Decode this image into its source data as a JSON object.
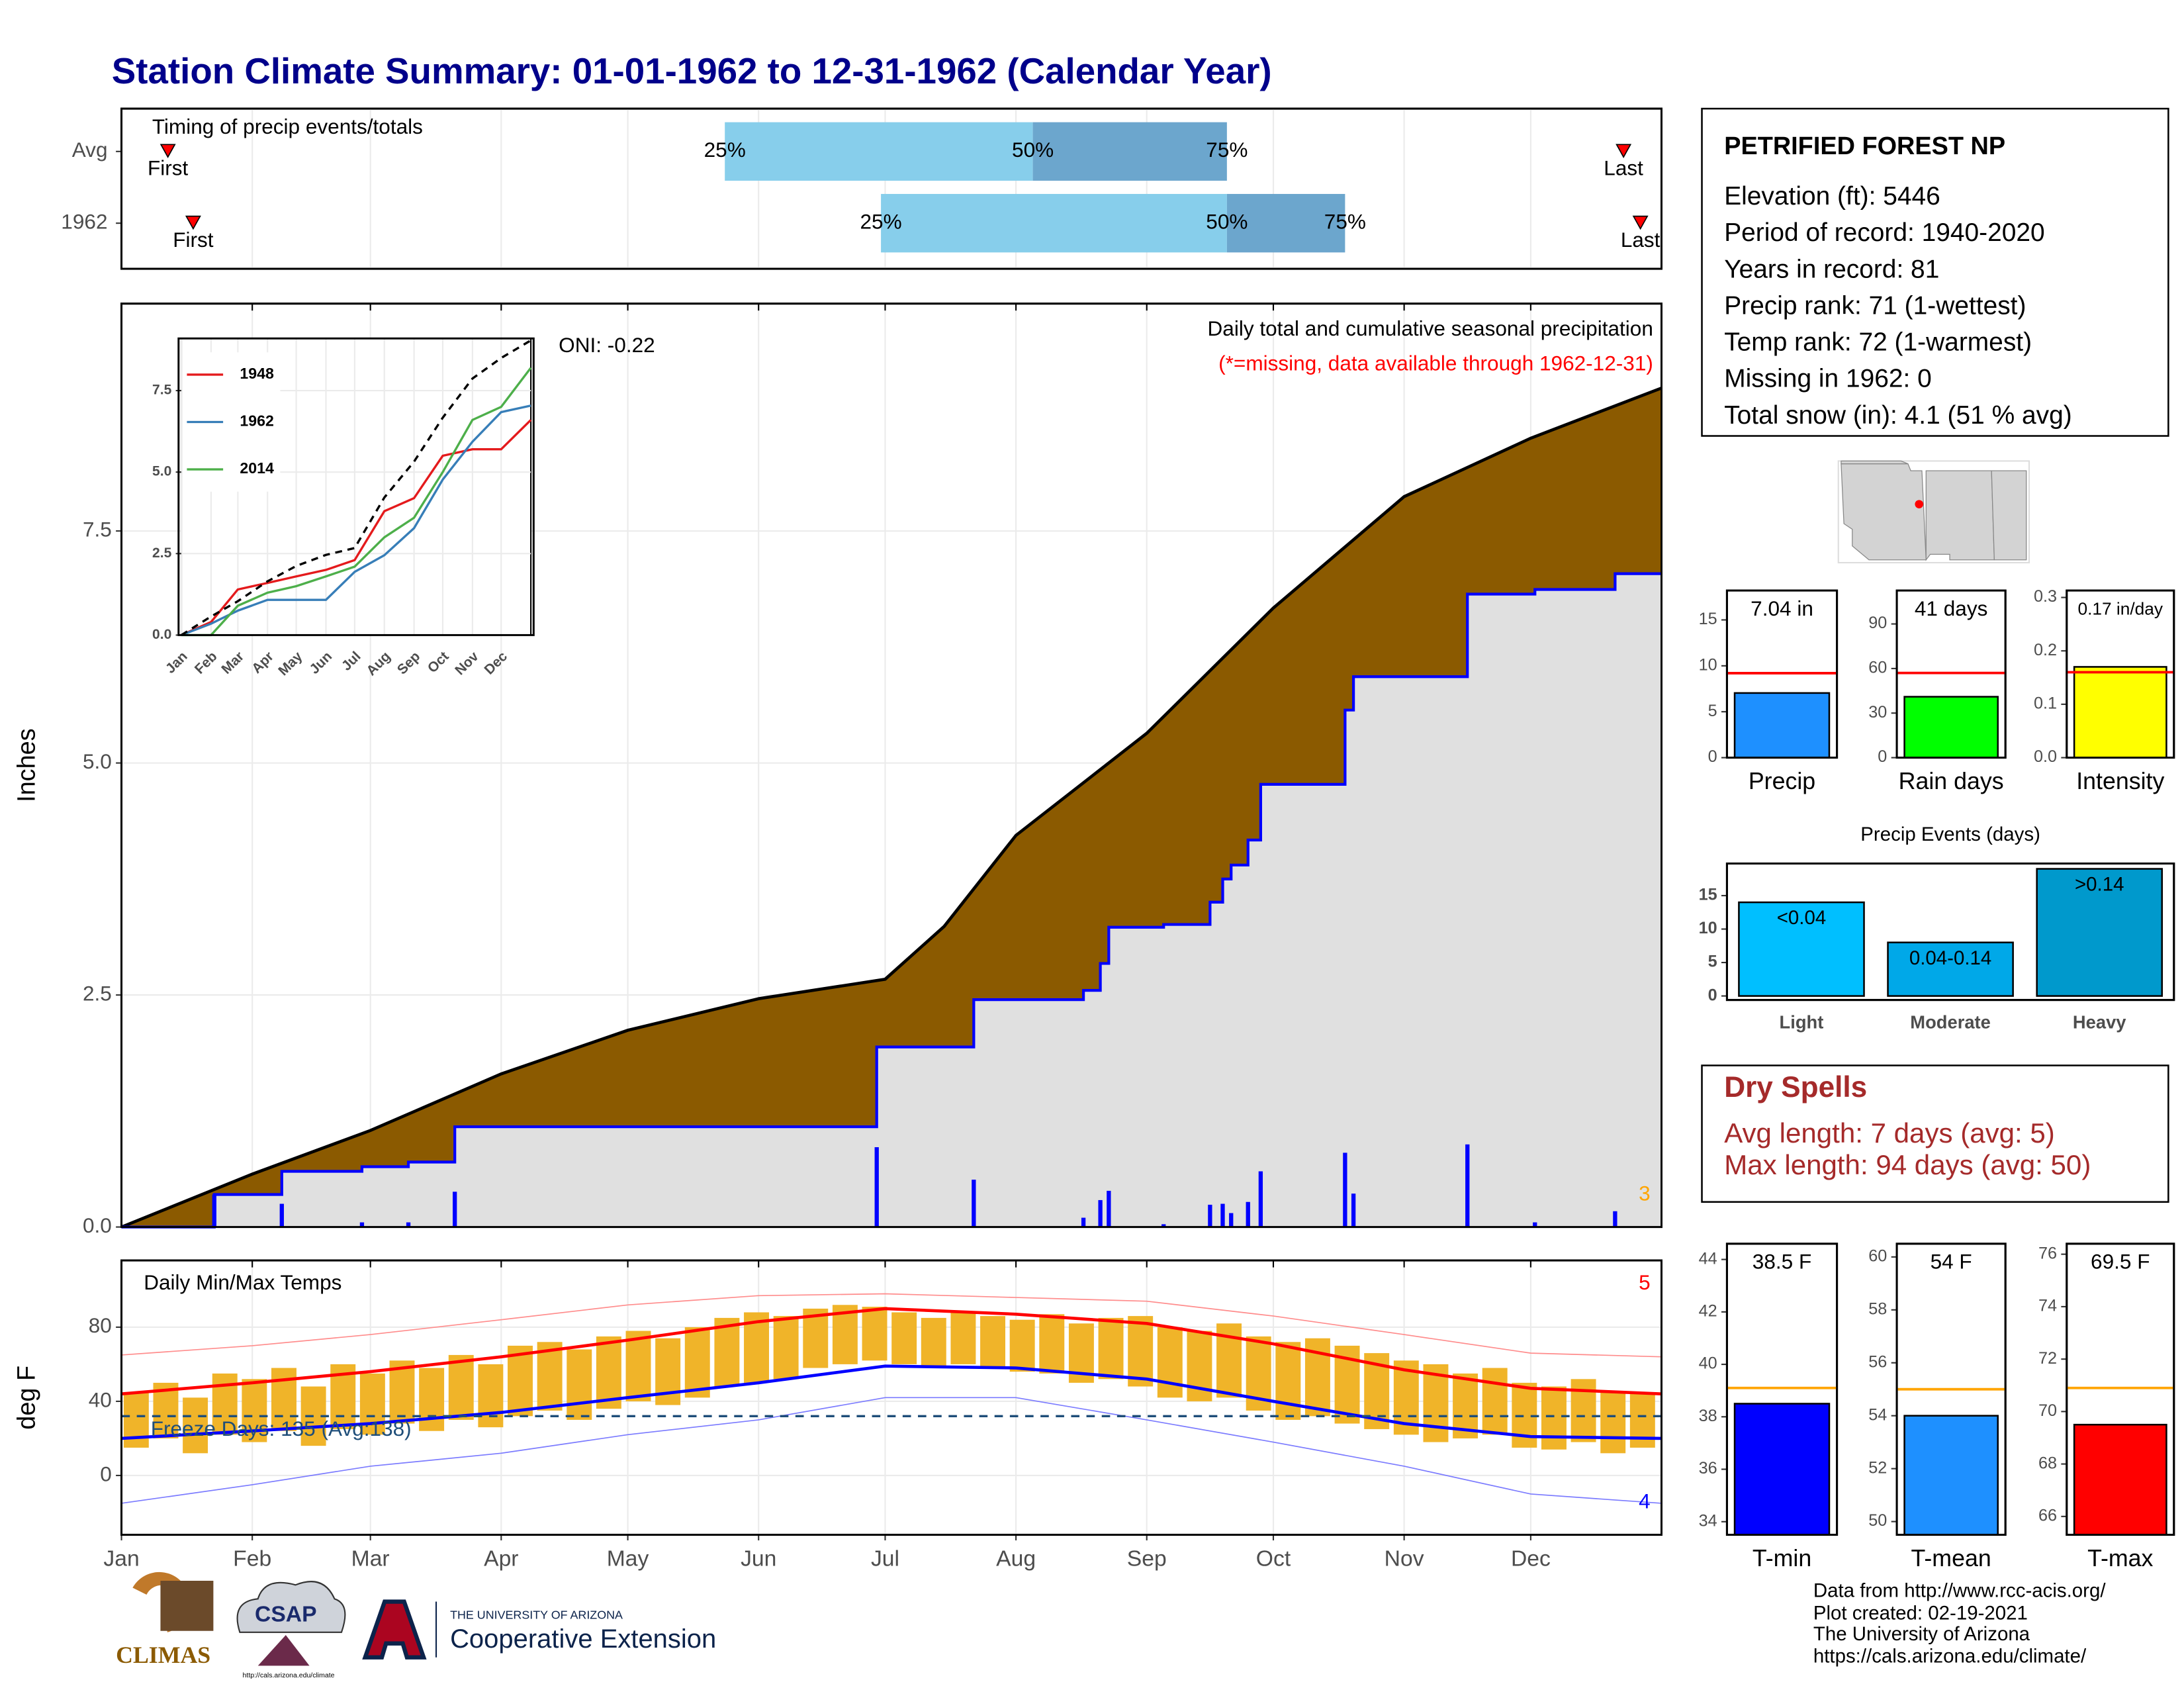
{
  "header": {
    "title": "Station Climate Summary: 01-01-1962 to 12-31-1962 (Calendar Year)"
  },
  "station": {
    "name": "PETRIFIED FOREST NP",
    "lines": [
      "Elevation (ft): 5446",
      "Period of record: 1940-2020",
      "Years in record: 81",
      "Precip rank: 71 (1-wettest)",
      "Temp rank: 72 (1-warmest)",
      "Missing in 1962: 0",
      "Total snow (in): 4.1 (51 % avg)"
    ]
  },
  "dry_spells": {
    "title": "Dry Spells",
    "lines": [
      "Avg length: 7 days (avg: 5)",
      "Max length: 94 days (avg: 50)"
    ]
  },
  "footer": {
    "credits": [
      "Data from http://www.rcc-acis.org/",
      "Plot created: 02-19-2021",
      "The University of Arizona",
      "https://cals.arizona.edu/climate/"
    ],
    "logos": {
      "climas": "CLIMAS",
      "csap": "CSAP",
      "csap_url": "http://cals.arizona.edu/climate",
      "university": "THE UNIVERSITY OF ARIZONA",
      "extension": "Cooperative Extension"
    }
  },
  "chart_data": [
    {
      "type": "timeline",
      "annotation": "Timing of precip events/totals",
      "categories": [
        "Avg",
        "1962"
      ],
      "xlim": [
        0,
        365
      ],
      "quantile_labels": [
        "25%",
        "50%",
        "75%"
      ],
      "quantiles": [
        [
          143,
          216,
          262
        ],
        [
          180,
          262,
          290
        ]
      ],
      "first": [
        11,
        17
      ],
      "last": [
        356,
        360
      ],
      "first_label": "First",
      "last_label": "Last",
      "colors": [
        "#87ceeb",
        "#6ca6cd"
      ],
      "marker_color": "#ff0000"
    },
    {
      "type": "cumulative",
      "title": "Daily total and cumulative seasonal precipitation",
      "subtitle": "(*=missing, data available through 1962-12-31)",
      "annotation": "ONI: -0.22",
      "ylabel": "Inches",
      "xlim": [
        0,
        365
      ],
      "ylim": [
        0,
        9.95
      ],
      "yticks": [
        {
          "value": 0,
          "label": "0.0"
        },
        2.5,
        {
          "value": 5,
          "label": "5.0"
        },
        7.5
      ],
      "x_avg": [
        0,
        31,
        59,
        90,
        120,
        151,
        181,
        195,
        212,
        243,
        273,
        304,
        334,
        365
      ],
      "avg_values": [
        0,
        0.57,
        1.04,
        1.65,
        2.12,
        2.46,
        2.67,
        3.24,
        4.22,
        5.32,
        6.67,
        7.87,
        8.5,
        9.04
      ],
      "x_year": [
        0,
        22,
        38,
        57,
        68,
        79,
        179,
        202,
        228,
        232,
        234,
        247,
        258,
        261,
        263,
        267,
        270,
        290,
        292,
        319,
        335,
        354,
        365
      ],
      "year_values": [
        0,
        0.35,
        0.6,
        0.65,
        0.7,
        1.08,
        1.94,
        2.45,
        2.55,
        2.84,
        3.23,
        3.26,
        3.5,
        3.75,
        3.9,
        4.17,
        4.77,
        5.57,
        5.93,
        6.82,
        6.87,
        7.04,
        7.04
      ],
      "daily_x": [
        22,
        38,
        57,
        68,
        79,
        179,
        202,
        228,
        232,
        234,
        247,
        258,
        261,
        263,
        267,
        270,
        290,
        292,
        319,
        335,
        354
      ],
      "daily_values": [
        0.35,
        0.25,
        0.05,
        0.05,
        0.38,
        0.86,
        0.51,
        0.1,
        0.29,
        0.39,
        0.03,
        0.24,
        0.25,
        0.15,
        0.27,
        0.6,
        0.8,
        0.36,
        0.89,
        0.05,
        0.17
      ],
      "count_label": 3,
      "avg_color": "#8b5a00",
      "year_color": "#0000ff",
      "fill_color": "#e0e0e0",
      "daily_color": "#0000ff",
      "count_color": "#ffa500"
    },
    {
      "type": "line",
      "xlim": [
        0,
        365
      ],
      "ylim": [
        0,
        9.1
      ],
      "yticks": [
        {
          "value": 0,
          "label": "0.0"
        },
        2.5,
        {
          "value": 5,
          "label": "5.0"
        },
        7.5
      ],
      "xticks": [
        {
          "value": 0,
          "label": "Jan"
        },
        {
          "value": 31,
          "label": "Feb"
        },
        {
          "value": 59,
          "label": "Mar"
        },
        {
          "value": 90,
          "label": "Apr"
        },
        {
          "value": 120,
          "label": "May"
        },
        {
          "value": 151,
          "label": "Jun"
        },
        {
          "value": 181,
          "label": "Jul"
        },
        {
          "value": 212,
          "label": "Aug"
        },
        {
          "value": 243,
          "label": "Sep"
        },
        {
          "value": 273,
          "label": "Oct"
        },
        {
          "value": 304,
          "label": "Nov"
        },
        {
          "value": 334,
          "label": "Dec"
        }
      ],
      "x": [
        0,
        31,
        59,
        90,
        120,
        151,
        181,
        212,
        243,
        273,
        304,
        334,
        365
      ],
      "series": [
        {
          "name": "1948",
          "color": "#e41a1c",
          "values": [
            0,
            0.4,
            1.4,
            1.6,
            1.8,
            2.0,
            2.3,
            3.8,
            4.2,
            5.5,
            5.7,
            5.7,
            6.6
          ]
        },
        {
          "name": "1962",
          "color": "#377eb8",
          "values": [
            0,
            0.35,
            0.75,
            1.08,
            1.08,
            1.08,
            1.94,
            2.45,
            3.28,
            4.77,
            5.93,
            6.84,
            7.04
          ]
        },
        {
          "name": "2014",
          "color": "#4daf4a",
          "values": [
            0,
            0,
            0.9,
            1.3,
            1.5,
            1.8,
            2.1,
            3.0,
            3.6,
            5.0,
            6.6,
            7.0,
            8.2
          ]
        }
      ],
      "average": [
        0,
        0.57,
        1.04,
        1.65,
        2.12,
        2.46,
        2.67,
        4.22,
        5.32,
        6.67,
        7.87,
        8.5,
        9.04
      ],
      "average_color": "#000000"
    },
    {
      "type": "range",
      "title": "Daily Min/Max Temps",
      "annotation": "Freeze Days: 135 (Avg:138)",
      "ylabel": "deg F",
      "xlim": [
        0,
        365
      ],
      "ylim": [
        -32,
        116
      ],
      "yticks": [
        0,
        40,
        80
      ],
      "xticks": [
        {
          "value": 0,
          "label": "Jan"
        },
        {
          "value": 31,
          "label": "Feb"
        },
        {
          "value": 59,
          "label": "Mar"
        },
        {
          "value": 90,
          "label": "Apr"
        },
        {
          "value": 120,
          "label": "May"
        },
        {
          "value": 151,
          "label": "Jun"
        },
        {
          "value": 181,
          "label": "Jul"
        },
        {
          "value": 212,
          "label": "Aug"
        },
        {
          "value": 243,
          "label": "Sep"
        },
        {
          "value": 273,
          "label": "Oct"
        },
        {
          "value": 304,
          "label": "Nov"
        },
        {
          "value": 334,
          "label": "Dec"
        }
      ],
      "x": [
        3.5,
        10.5,
        17.5,
        24.5,
        31.5,
        38.5,
        45.5,
        52.5,
        59.5,
        66.5,
        73.5,
        80.5,
        87.5,
        94.5,
        101.5,
        108.5,
        115.5,
        122.5,
        129.5,
        136.5,
        143.5,
        150.5,
        157.5,
        164.5,
        171.5,
        178.5,
        185.5,
        192.5,
        199.5,
        206.5,
        213.5,
        220.5,
        227.5,
        234.5,
        241.5,
        248.5,
        255.5,
        262.5,
        269.5,
        276.5,
        283.5,
        290.5,
        297.5,
        304.5,
        311.5,
        318.5,
        325.5,
        332.5,
        339.5,
        346.5,
        353.5,
        360.5
      ],
      "high": [
        45,
        50,
        42,
        55,
        52,
        58,
        48,
        60,
        55,
        62,
        58,
        65,
        60,
        70,
        72,
        68,
        75,
        78,
        74,
        80,
        85,
        88,
        86,
        90,
        92,
        91,
        88,
        85,
        88,
        86,
        84,
        87,
        82,
        85,
        86,
        80,
        78,
        82,
        75,
        72,
        74,
        70,
        66,
        62,
        60,
        55,
        58,
        50,
        48,
        52,
        45,
        44
      ],
      "low": [
        15,
        20,
        12,
        22,
        18,
        24,
        16,
        25,
        22,
        28,
        24,
        30,
        26,
        32,
        35,
        30,
        36,
        40,
        38,
        42,
        48,
        50,
        52,
        58,
        60,
        62,
        60,
        58,
        60,
        58,
        56,
        55,
        50,
        52,
        48,
        42,
        40,
        42,
        35,
        30,
        32,
        28,
        25,
        22,
        18,
        20,
        22,
        15,
        14,
        18,
        12,
        15
      ],
      "x_normal": [
        0,
        31,
        59,
        90,
        120,
        151,
        181,
        212,
        243,
        273,
        304,
        334,
        365
      ],
      "normal_high": [
        44,
        50,
        56,
        64,
        73,
        83,
        90,
        87,
        82,
        71,
        57,
        47,
        44
      ],
      "normal_low": [
        20,
        24,
        28,
        34,
        42,
        50,
        59,
        58,
        52,
        40,
        28,
        21,
        20
      ],
      "record_high": [
        65,
        70,
        76,
        84,
        92,
        97,
        98,
        96,
        94,
        86,
        76,
        66,
        64
      ],
      "record_low": [
        -15,
        -5,
        5,
        12,
        22,
        30,
        42,
        42,
        30,
        18,
        5,
        -10,
        -15
      ],
      "freeze_threshold": 32,
      "high_count": 5,
      "low_count": 4,
      "bar_color": "#f0b429",
      "high_color": "#ff0000",
      "low_color": "#0000ff",
      "record_high_color": "#ff8c8c",
      "record_low_color": "#7b7bff",
      "freeze_color": "#1f4e79"
    },
    {
      "type": "bar",
      "categories": [
        "Precip"
      ],
      "values": [
        7.04
      ],
      "value_labels": [
        "7.04 in"
      ],
      "average": 9.2,
      "color": "#1e90ff",
      "average_color": "#ff0000",
      "ylim": [
        0,
        18.2
      ],
      "yticks": [
        0,
        5,
        10,
        15
      ]
    },
    {
      "type": "bar",
      "categories": [
        "Rain days"
      ],
      "values": [
        41
      ],
      "value_labels": [
        "41 days"
      ],
      "average": 57,
      "color": "#00ff00",
      "average_color": "#ff0000",
      "ylim": [
        0,
        112.5
      ],
      "yticks": [
        0,
        30,
        60,
        90
      ]
    },
    {
      "type": "bar",
      "categories": [
        "Intensity"
      ],
      "values": [
        0.17
      ],
      "value_labels": [
        "0.17 in/day"
      ],
      "average": 0.16,
      "color": "#ffff00",
      "average_color": "#ff0000",
      "ylim": [
        0,
        0.313
      ],
      "yticks": [
        {
          "value": 0,
          "label": "0.0"
        },
        0.1,
        0.2,
        0.3
      ]
    },
    {
      "type": "bar",
      "title": "Precip Events (days)",
      "categories": [
        "Light",
        "Moderate",
        "Heavy"
      ],
      "values": [
        14,
        8,
        19
      ],
      "bin_labels": [
        "<0.04",
        "0.04-0.14",
        ">0.14"
      ],
      "colors": [
        "#00bfff",
        "#00a8e8",
        "#0099cc"
      ],
      "ylim": [
        -0.6,
        19.8
      ],
      "yticks": [
        0,
        5,
        10,
        15
      ]
    },
    {
      "type": "bar",
      "categories": [
        "T-min"
      ],
      "values": [
        38.5
      ],
      "value_labels": [
        "38.5 F"
      ],
      "average": 39.1,
      "color": "#0000ff",
      "average_color": "#ffa500",
      "ylim": [
        33.5,
        44.6
      ],
      "yticks": [
        34,
        36,
        38,
        40,
        42,
        44
      ]
    },
    {
      "type": "bar",
      "categories": [
        "T-mean"
      ],
      "values": [
        54
      ],
      "value_labels": [
        "54 F"
      ],
      "average": 55,
      "color": "#1e90ff",
      "average_color": "#ffa500",
      "ylim": [
        49.5,
        60.5
      ],
      "yticks": [
        50,
        52,
        54,
        56,
        58,
        60
      ]
    },
    {
      "type": "bar",
      "categories": [
        "T-max"
      ],
      "values": [
        69.5
      ],
      "value_labels": [
        "69.5 F"
      ],
      "average": 70.9,
      "color": "#ff0000",
      "average_color": "#ffa500",
      "ylim": [
        65.3,
        76.4
      ],
      "yticks": [
        66,
        68,
        70,
        72,
        74,
        76
      ]
    }
  ]
}
